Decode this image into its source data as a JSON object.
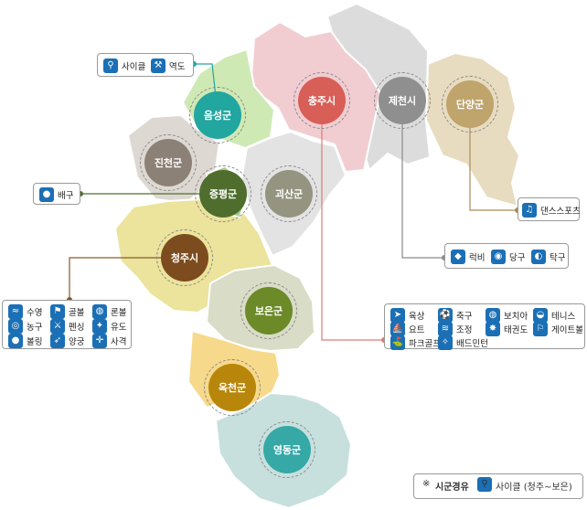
{
  "colors": {
    "icon": "#1a6fb5",
    "chungju_fill": "#f1cdd2",
    "chungju_badge": "#d85e58",
    "jecheon_fill": "#dcdcdc",
    "jecheon_badge": "#8f8f8f",
    "danyang_fill": "#e8dcc0",
    "danyang_badge": "#bfa46c",
    "eumseong_fill": "#cfe9b4",
    "eumseong_badge": "#22a6a0",
    "jincheon_fill": "#ddd8d2",
    "jincheon_badge": "#8c8176",
    "jeungpyeong_fill": "#a9ca8c",
    "jeungpyeong_badge": "#4f6e2d",
    "goesan_fill": "#e3e3e3",
    "goesan_badge": "#949481",
    "cheongju_fill": "#ece39c",
    "cheongju_badge": "#7c4c1f",
    "boeun_fill": "#d9dcc6",
    "boeun_badge": "#6c8a28",
    "okcheon_fill": "#f7d98b",
    "okcheon_badge": "#b8860b",
    "yeongdong_fill": "#c7e0de",
    "yeongdong_badge": "#36a8a6",
    "leader_chungju": "#e07b74",
    "leader_jecheon": "#8a8a8a",
    "leader_danyang": "#a88c5a",
    "leader_eumseong": "#22a6a0",
    "leader_jeungpyeong": "#4f6e2d",
    "leader_cheongju": "#8a5a2b"
  },
  "regions": {
    "chungju": "충주시",
    "jecheon": "제천시",
    "danyang": "단양군",
    "eumseong": "음성군",
    "jincheon": "진천군",
    "jeungpyeong": "증평군",
    "goesan": "괴산군",
    "cheongju": "청주시",
    "boeun": "보은군",
    "okcheon": "옥천군",
    "yeongdong": "영동군"
  },
  "legends": {
    "eumseong": [
      {
        "icon": "cycling-icon",
        "label": "사이클"
      },
      {
        "icon": "weightlifting-icon",
        "label": "역도"
      }
    ],
    "jeungpyeong": [
      {
        "icon": "volleyball-icon",
        "label": "배구"
      }
    ],
    "danyang": [
      {
        "icon": "dancesport-icon",
        "label": "댄스스포츠"
      }
    ],
    "jecheon": [
      {
        "icon": "rugby-icon",
        "label": "럭비"
      },
      {
        "icon": "billiards-icon",
        "label": "당구"
      },
      {
        "icon": "table-tennis-icon",
        "label": "탁구"
      }
    ],
    "cheongju": [
      {
        "icon": "swimming-icon",
        "label": "수영"
      },
      {
        "icon": "golf-icon",
        "label": "골볼"
      },
      {
        "icon": "boccia-icon",
        "label": "론볼"
      },
      {
        "icon": "basketball-icon",
        "label": "농구"
      },
      {
        "icon": "fencing-icon",
        "label": "펜싱"
      },
      {
        "icon": "judo-icon",
        "label": "유도"
      },
      {
        "icon": "bowling-icon",
        "label": "볼링"
      },
      {
        "icon": "archery-icon",
        "label": "양궁"
      },
      {
        "icon": "shooting-icon",
        "label": "사격"
      }
    ],
    "chungju": [
      {
        "icon": "athletics-icon",
        "label": "육상"
      },
      {
        "icon": "football-icon",
        "label": "축구"
      },
      {
        "icon": "boccia-icon",
        "label": "보치아"
      },
      {
        "icon": "tennis-icon",
        "label": "테니스"
      },
      {
        "icon": "sailing-icon",
        "label": "요트"
      },
      {
        "icon": "rowing-icon",
        "label": "조정"
      },
      {
        "icon": "taekwondo-icon",
        "label": "태권도"
      },
      {
        "icon": "gateball-icon",
        "label": "게이트볼"
      },
      {
        "icon": "parkgolf-icon",
        "label": "파크골프"
      },
      {
        "icon": "badminton-icon",
        "label": "배드민턴"
      }
    ]
  },
  "note": {
    "symbol": "※",
    "title": "시군경유",
    "icon": "cycling-icon",
    "text": "사이클 (청주~보은)"
  }
}
